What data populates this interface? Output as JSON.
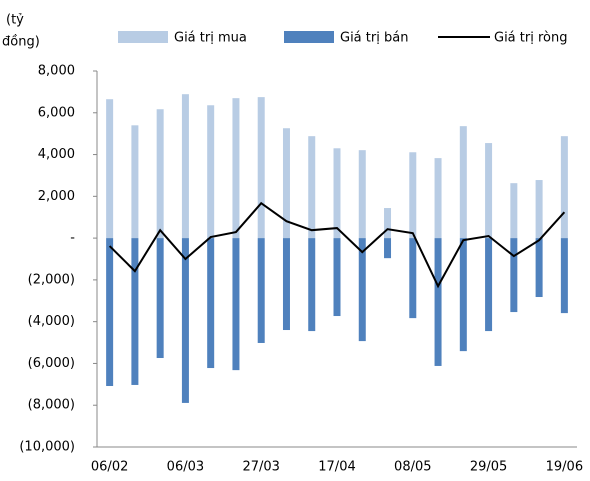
{
  "chart_data": {
    "type": "bar",
    "ylabel": [
      "(tỷ",
      "đồng)"
    ],
    "categories": [
      "06/02",
      null,
      null,
      "06/03",
      null,
      null,
      "27/03",
      null,
      null,
      "17/04",
      null,
      null,
      "08/05",
      null,
      null,
      "29/05",
      null,
      null,
      "19/06"
    ],
    "series": [
      {
        "name": "Giá trị mua",
        "type": "bar",
        "color": "#b8cce4",
        "values": [
          6650,
          5400,
          6170,
          6890,
          6360,
          6700,
          6750,
          5260,
          4880,
          4300,
          4210,
          1440,
          4110,
          3830,
          5360,
          4550,
          2630,
          2780,
          4880
        ]
      },
      {
        "name": "Giá trị bán",
        "type": "bar",
        "color": "#4f81bd",
        "values": [
          -7080,
          -7030,
          -5740,
          -7890,
          -6220,
          -6320,
          -5020,
          -4400,
          -4450,
          -3730,
          -4930,
          -960,
          -3830,
          -6120,
          -5410,
          -4450,
          -3540,
          -2820,
          -3590
        ]
      },
      {
        "name": "Giá trị ròng",
        "type": "line",
        "color": "#000000",
        "values": [
          -380,
          -1580,
          380,
          -1000,
          50,
          290,
          1670,
          810,
          380,
          480,
          -670,
          430,
          240,
          -2300,
          -100,
          100,
          -860,
          -100,
          1240
        ]
      }
    ],
    "ylim": [
      -10000,
      8000
    ],
    "yticks": [
      {
        "value": -10000,
        "label": "(10,000)"
      },
      {
        "value": -8000,
        "label": "(8,000)"
      },
      {
        "value": -6000,
        "label": "(6,000)"
      },
      {
        "value": -4000,
        "label": "(4,000)"
      },
      {
        "value": -2000,
        "label": "(2,000)"
      },
      {
        "value": 0,
        "label": "-"
      },
      {
        "value": 2000,
        "label": "2,000"
      },
      {
        "value": 4000,
        "label": "4,000"
      },
      {
        "value": 6000,
        "label": "6,000"
      },
      {
        "value": 8000,
        "label": "8,000"
      }
    ],
    "legend": "top",
    "grid": false
  }
}
